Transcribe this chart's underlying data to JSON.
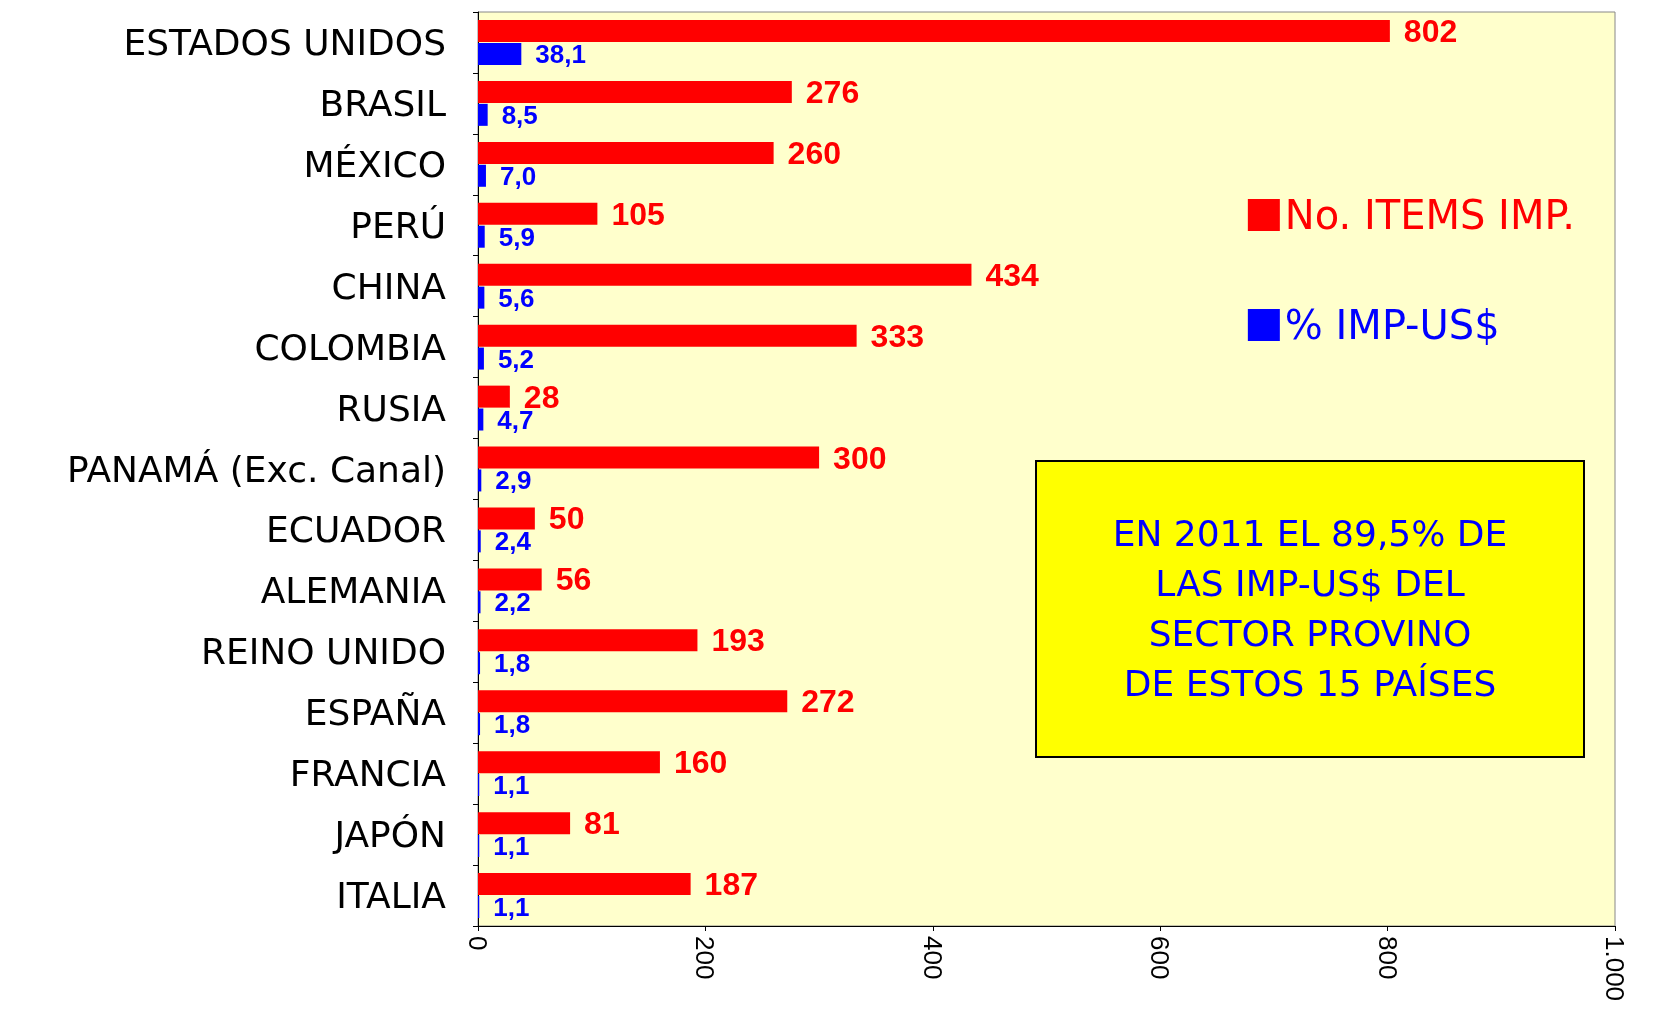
{
  "chart_data": {
    "type": "bar",
    "orientation": "horizontal",
    "categories": [
      "ESTADOS UNIDOS",
      "BRASIL",
      "MÉXICO",
      "PERÚ",
      "CHINA",
      "COLOMBIA",
      "RUSIA",
      "PANAMÁ (Exc. Canal)",
      "ECUADOR",
      "ALEMANIA",
      "REINO UNIDO",
      "ESPAÑA",
      "FRANCIA",
      "JAPÓN",
      "ITALIA"
    ],
    "series": [
      {
        "name": "No. ITEMS IMP.",
        "color": "#ff0000",
        "values": [
          802,
          276,
          260,
          105,
          434,
          333,
          28,
          300,
          50,
          56,
          193,
          272,
          160,
          81,
          187
        ],
        "value_labels": [
          "802",
          "276",
          "260",
          "105",
          "434",
          "333",
          "28",
          "300",
          "50",
          "56",
          "193",
          "272",
          "160",
          "81",
          "187"
        ]
      },
      {
        "name": "% IMP-US$",
        "color": "#0000ff",
        "values": [
          38.1,
          8.5,
          7.0,
          5.9,
          5.6,
          5.2,
          4.7,
          2.9,
          2.4,
          2.2,
          1.8,
          1.8,
          1.1,
          1.1,
          1.1
        ],
        "value_labels": [
          "38,1",
          "8,5",
          "7,0",
          "5,9",
          "5,6",
          "5,2",
          "4,7",
          "2,9",
          "2,4",
          "2,2",
          "1,8",
          "1,8",
          "1,1",
          "1,1",
          "1,1"
        ]
      }
    ],
    "xlim": [
      0,
      1000
    ],
    "xticks": [
      0,
      200,
      400,
      600,
      800,
      {
        "value": 1000,
        "label": "1.000"
      }
    ],
    "grid": false,
    "legend": "right",
    "annotations": [
      "EN 2011 EL 89,5% DE\nLAS IMP-US$ DEL\nSECTOR PROVINO\nDE ESTOS 15 PAÍSES"
    ]
  }
}
